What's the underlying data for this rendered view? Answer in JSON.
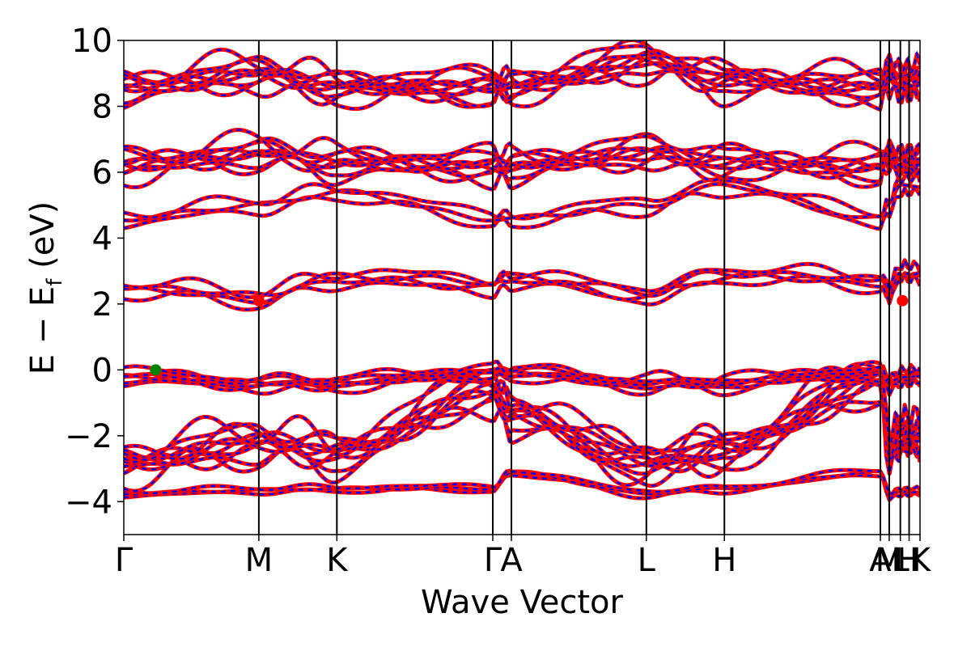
{
  "chart_data": {
    "type": "line",
    "xlabel": "Wave Vector",
    "ylabel": "E − E_f (eV)",
    "ylabel_main": "E − E",
    "ylabel_sub": "f",
    "ylabel_unit": " (eV)",
    "ylim": [
      -5,
      10
    ],
    "y_ticks": [
      -4,
      -2,
      0,
      2,
      4,
      6,
      8,
      10
    ],
    "y_tick_labels": [
      "−4",
      "−2",
      "0",
      "2",
      "4",
      "6",
      "8",
      "10"
    ],
    "x_ticks": [
      {
        "label": "Γ",
        "x": 0.0
      },
      {
        "label": "M",
        "x": 0.1696
      },
      {
        "label": "K",
        "x": 0.2676
      },
      {
        "label": "Γ",
        "x": 0.4634
      },
      {
        "label": "A",
        "x": 0.4868
      },
      {
        "label": "L",
        "x": 0.6563
      },
      {
        "label": "H",
        "x": 0.7543
      },
      {
        "label": "A",
        "x": 0.9502
      },
      {
        "label": "M",
        "x": 0.9613
      },
      {
        "label": "L",
        "x": 0.9753
      },
      {
        "label": "H",
        "x": 0.9863
      },
      {
        "label": "K",
        "x": 1.0
      }
    ],
    "series": [
      {
        "color": "#ff0000",
        "style": "solid"
      },
      {
        "color": "#0000ff",
        "style": "dashed"
      }
    ],
    "markers": [
      {
        "kind": "VBM",
        "x": 0.04,
        "y": 0.0,
        "color": "#008000"
      },
      {
        "kind": "CBM",
        "x": 0.1696,
        "y": 2.1,
        "color": "#ff0000"
      },
      {
        "kind": "CBM",
        "x": 0.978,
        "y": 2.1,
        "color": "#ff0000"
      }
    ],
    "band_groups": [
      {
        "y": [
          -3.75,
          -3.65,
          -3.6,
          -3.6,
          -3.1,
          -3.75,
          -3.6,
          -3.1,
          -3.8,
          -3.7
        ],
        "spread": 0.25,
        "count": 3
      },
      {
        "y": [
          -2.8,
          -2.2,
          -2.5,
          -0.6,
          -1.3,
          -2.8,
          -2.4,
          -0.3,
          -2.5,
          -2.0
        ],
        "spread": 1.6,
        "count": 10
      },
      {
        "y": [
          -0.2,
          -0.4,
          -0.4,
          -0.05,
          -0.1,
          -0.4,
          -0.4,
          -0.05,
          -0.4,
          -0.2
        ],
        "spread": 0.6,
        "count": 6
      },
      {
        "y": [
          2.5,
          2.2,
          2.8,
          2.6,
          2.8,
          2.3,
          2.9,
          2.7,
          2.3,
          2.9
        ],
        "spread": 0.7,
        "count": 4
      },
      {
        "y": [
          4.6,
          5.0,
          5.4,
          4.6,
          4.6,
          5.0,
          5.6,
          4.6,
          5.0,
          5.6
        ],
        "spread": 0.6,
        "count": 3
      },
      {
        "y": [
          6.2,
          6.6,
          6.3,
          6.2,
          6.2,
          6.6,
          6.3,
          6.2,
          6.5,
          6.3
        ],
        "spread": 1.2,
        "count": 8
      },
      {
        "y": [
          8.6,
          9.0,
          8.6,
          8.6,
          8.6,
          9.4,
          8.8,
          8.6,
          9.0,
          8.8
        ],
        "spread": 1.3,
        "count": 9
      }
    ]
  }
}
